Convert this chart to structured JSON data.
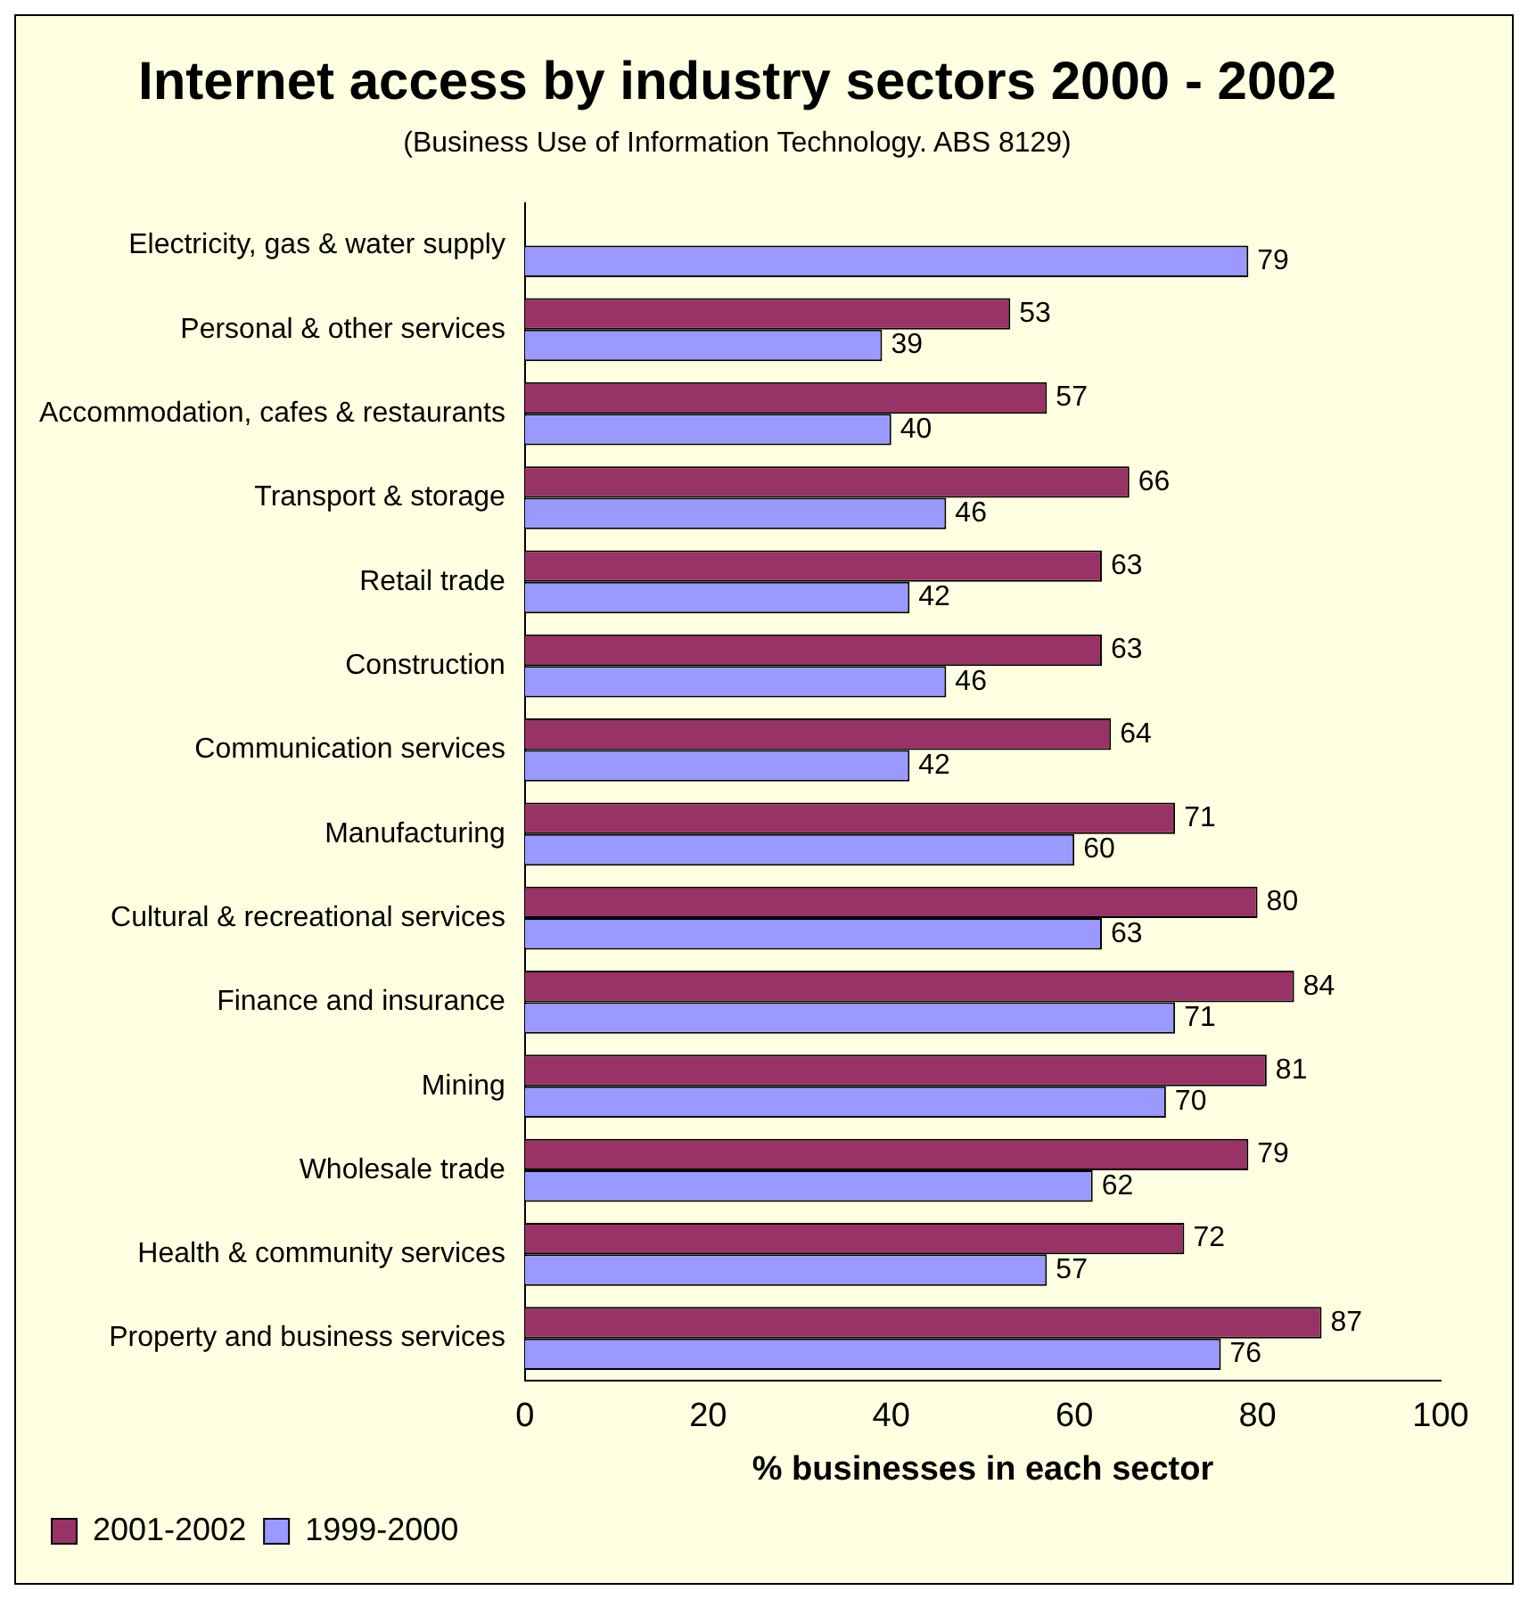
{
  "chart_data": {
    "type": "bar",
    "orientation": "horizontal",
    "title": "Internet access by industry sectors 2000 - 2002",
    "subtitle": "(Business Use of Information Technology. ABS 8129)",
    "xlabel": "% businesses in each sector",
    "categories": [
      "Electricity, gas & water supply",
      "Personal & other services",
      "Accommodation, cafes & restaurants",
      "Transport & storage",
      "Retail trade",
      "Construction",
      "Communication services",
      "Manufacturing",
      "Cultural & recreational services",
      "Finance and insurance",
      "Mining",
      "Wholesale trade",
      "Health & community services",
      "Property and business services"
    ],
    "series": [
      {
        "name": "2001-2002",
        "color": "#993366",
        "values": [
          null,
          53,
          57,
          66,
          63,
          63,
          64,
          71,
          80,
          84,
          81,
          79,
          72,
          87
        ]
      },
      {
        "name": "1999-2000",
        "color": "#9999ff",
        "values": [
          79,
          39,
          40,
          46,
          42,
          46,
          42,
          60,
          63,
          71,
          70,
          62,
          57,
          76
        ]
      }
    ],
    "xlim": [
      0,
      100
    ],
    "xticks": [
      0,
      20,
      40,
      60,
      80,
      100
    ],
    "grid": false,
    "legend": "bottom left",
    "data_labels": true
  }
}
